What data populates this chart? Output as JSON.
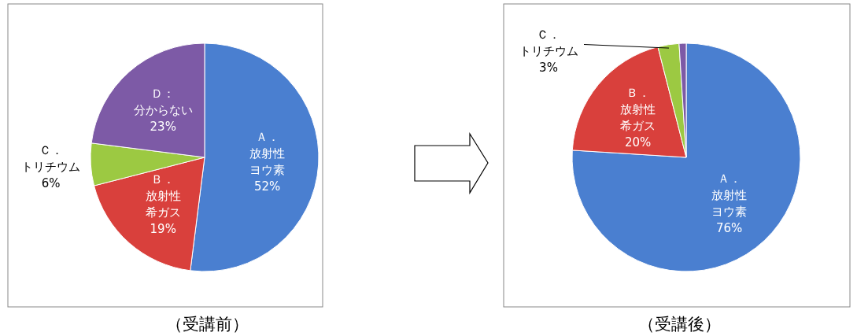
{
  "chart_data": [
    {
      "type": "pie",
      "title": "（受講前）",
      "categories": [
        "Ａ．放射性ヨウ素",
        "Ｂ．放射性希ガス",
        "Ｃ．トリチウム",
        "Ｄ：分からない"
      ],
      "values": [
        52,
        19,
        6,
        23
      ],
      "value_labels": [
        "52%",
        "19%",
        "6%",
        "23%"
      ],
      "colors": [
        "#4a7fd0",
        "#d9403c",
        "#9cc942",
        "#7d5aa6"
      ]
    },
    {
      "type": "pie",
      "title": "（受講後）",
      "categories": [
        "Ａ．放射性ヨウ素",
        "Ｂ．放射性希ガス",
        "Ｃ．トリチウム",
        null
      ],
      "values": [
        76,
        20,
        3,
        1
      ],
      "value_labels": [
        "76%",
        "20%",
        "3%",
        null
      ],
      "colors": [
        "#4a7fd0",
        "#d9403c",
        "#9cc942",
        "#7d5aa6"
      ]
    }
  ]
}
